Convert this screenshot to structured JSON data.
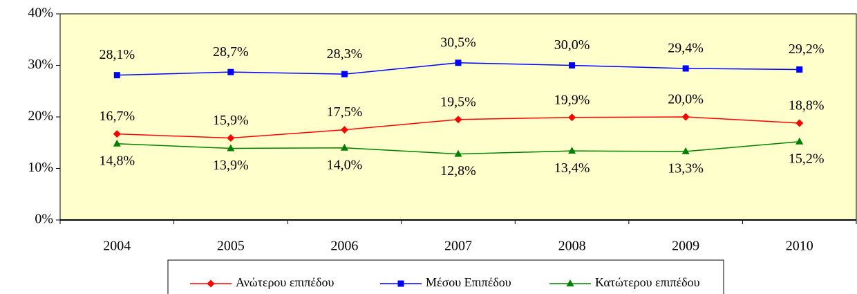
{
  "chart_data": {
    "type": "line",
    "categories": [
      "2004",
      "2005",
      "2006",
      "2007",
      "2008",
      "2009",
      "2010"
    ],
    "series": [
      {
        "name": "Ανώτερου επιπέδου",
        "color": "#ff0000",
        "marker": "diamond",
        "label_position": "above",
        "values": [
          16.7,
          15.9,
          17.5,
          19.5,
          19.9,
          20.0,
          18.8
        ],
        "value_labels": [
          "16,7%",
          "15,9%",
          "17,5%",
          "19,5%",
          "19,9%",
          "20,0%",
          "18,8%"
        ]
      },
      {
        "name": "Μέσου Επιπέδου",
        "color": "#0000ff",
        "marker": "square",
        "label_position": "above",
        "values": [
          28.1,
          28.7,
          28.3,
          30.5,
          30.0,
          29.4,
          29.2
        ],
        "value_labels": [
          "28,1%",
          "28,7%",
          "28,3%",
          "30,5%",
          "30,0%",
          "29,4%",
          "29,2%"
        ]
      },
      {
        "name": "Κατώτερου επιπέδου",
        "color": "#008000",
        "marker": "triangle",
        "label_position": "below",
        "values": [
          14.8,
          13.9,
          14.0,
          12.8,
          13.4,
          13.3,
          15.2
        ],
        "value_labels": [
          "14,8%",
          "13,9%",
          "14,0%",
          "12,8%",
          "13,4%",
          "13,3%",
          "15,2%"
        ]
      }
    ],
    "ylim": [
      0,
      40
    ],
    "yticks": [
      {
        "value": 0,
        "label": "0%"
      },
      {
        "value": 10,
        "label": "10%"
      },
      {
        "value": 20,
        "label": "20%"
      },
      {
        "value": 30,
        "label": "30%"
      },
      {
        "value": 40,
        "label": "40%"
      }
    ],
    "plot_background": "#ffffcc"
  }
}
